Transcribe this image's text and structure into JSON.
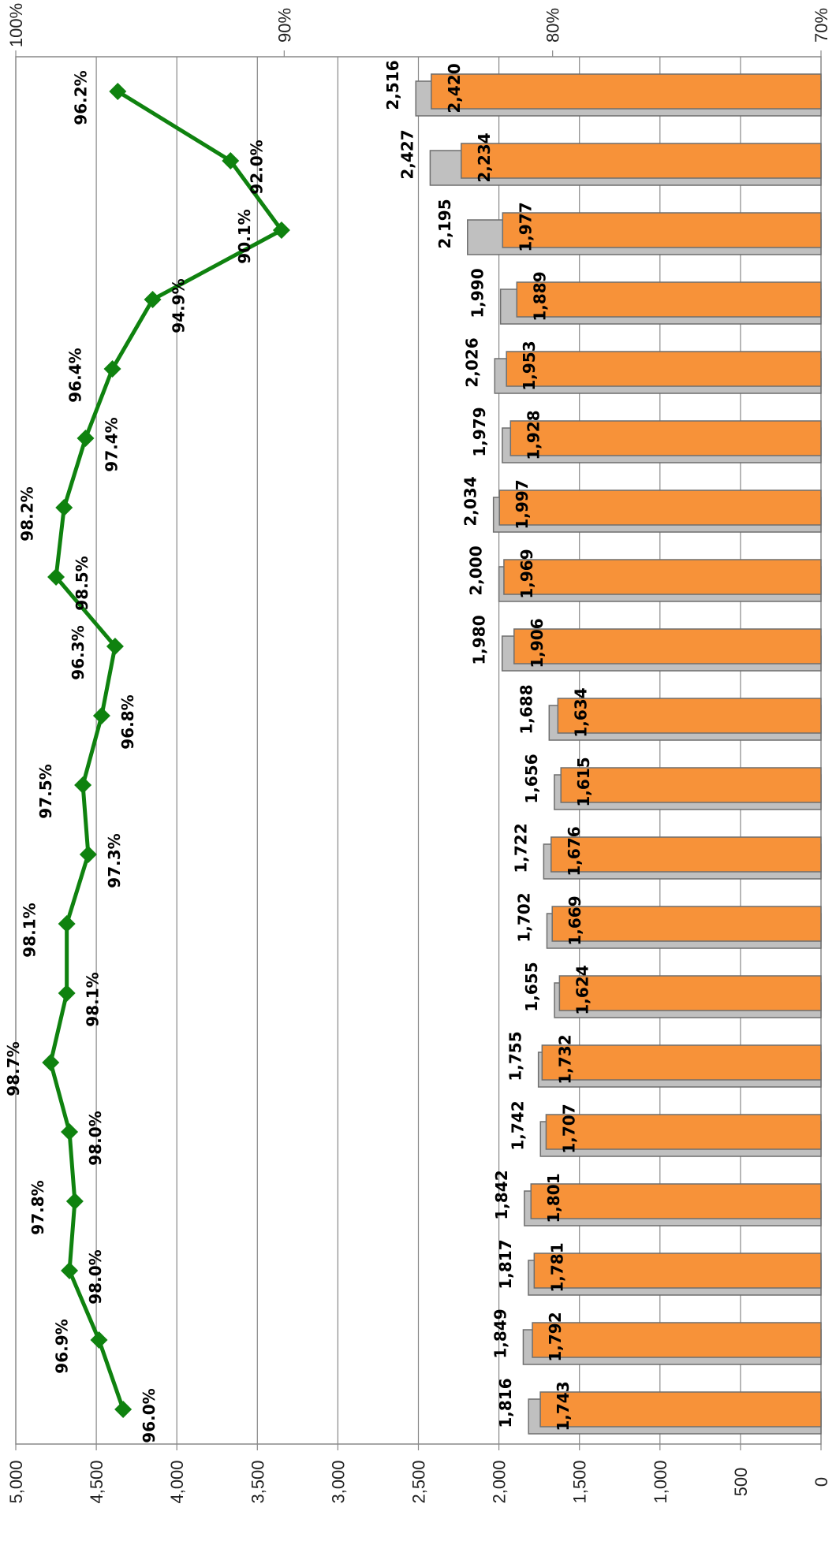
{
  "chart_data": {
    "type": "bar",
    "orientation": "rotated",
    "categories": [
      "",
      "",
      "",
      "",
      "",
      "",
      "",
      "",
      "",
      "",
      "",
      "",
      "",
      "",
      "",
      "",
      "",
      "",
      "",
      ""
    ],
    "series": [
      {
        "kind": "bar",
        "axis": "left",
        "values": [
          2516,
          2427,
          2195,
          1990,
          2026,
          1979,
          2034,
          2000,
          1980,
          1688,
          1656,
          1722,
          1702,
          1655,
          1755,
          1742,
          1842,
          1817,
          1849,
          1816
        ]
      },
      {
        "kind": "bar",
        "axis": "left",
        "values": [
          2420,
          2234,
          1977,
          1889,
          1953,
          1928,
          1997,
          1969,
          1906,
          1634,
          1615,
          1676,
          1669,
          1624,
          1732,
          1707,
          1801,
          1781,
          1792,
          1743
        ]
      },
      {
        "kind": "line",
        "axis": "right",
        "values": [
          96.2,
          92.0,
          90.1,
          94.9,
          96.4,
          97.4,
          98.2,
          98.5,
          96.3,
          96.8,
          97.5,
          97.3,
          98.1,
          98.1,
          98.7,
          98.0,
          97.8,
          98.0,
          96.9,
          96.0
        ]
      }
    ],
    "value_labels": {
      "gray": [
        "2,516",
        "2,427",
        "2,195",
        "1,990",
        "2,026",
        "1,979",
        "2,034",
        "2,000",
        "1,980",
        "1,688",
        "1,656",
        "1,722",
        "1,702",
        "1,655",
        "1,755",
        "1,742",
        "1,842",
        "1,817",
        "1,849",
        "1,816"
      ],
      "orange": [
        "2,420",
        "2,234",
        "1,977",
        "1,889",
        "1,953",
        "1,928",
        "1,997",
        "1,969",
        "1,906",
        "1,634",
        "1,615",
        "1,676",
        "1,669",
        "1,624",
        "1,732",
        "1,707",
        "1,801",
        "1,781",
        "1,792",
        "1,743"
      ],
      "line": [
        "96.2%",
        "92.0%",
        "90.1%",
        "94.9%",
        "96.4%",
        "97.4%",
        "98.2%",
        "98.5%",
        "96.3%",
        "96.8%",
        "97.5%",
        "97.3%",
        "98.1%",
        "98.1%",
        "98.7%",
        "98.0%",
        "97.8%",
        "98.0%",
        "96.9%",
        "96.0%"
      ]
    },
    "left_axis": {
      "range": [
        0,
        5000
      ],
      "ticks": [
        "0",
        "500",
        "1,000",
        "1,500",
        "2,000",
        "2,500",
        "3,000",
        "3,500",
        "4,000",
        "4,500",
        "5,000"
      ]
    },
    "right_axis": {
      "range": [
        70,
        100
      ],
      "ticks": [
        "70%",
        "80%",
        "90%",
        "100%"
      ]
    },
    "grid": true,
    "legend": "none",
    "colors": {
      "gray_bar": "#c0c0c0",
      "orange_bar": "#f79239",
      "line": "#0f820f",
      "grid": "#888888",
      "bar_edge": "#6e6e6e"
    }
  }
}
